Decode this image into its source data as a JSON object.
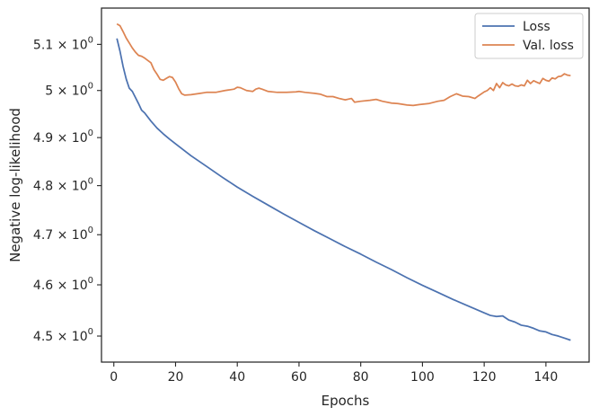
{
  "chart_data": {
    "type": "line",
    "title": "",
    "xlabel": "Epochs",
    "ylabel": "Negative log-likelihood",
    "yscale": "log",
    "xlim": [
      -4,
      154
    ],
    "ylim": [
      4.45,
      5.18
    ],
    "grid": false,
    "legend_position": "top-right",
    "x_ticks": [
      0,
      20,
      40,
      60,
      80,
      100,
      120,
      140
    ],
    "y_ticks": [
      {
        "value": 4.5,
        "mantissa": "4.5"
      },
      {
        "value": 4.6,
        "mantissa": "4.6"
      },
      {
        "value": 4.7,
        "mantissa": "4.7"
      },
      {
        "value": 4.8,
        "mantissa": "4.8"
      },
      {
        "value": 4.9,
        "mantissa": "4.9"
      },
      {
        "value": 5.0,
        "mantissa": "5"
      },
      {
        "value": 5.1,
        "mantissa": "5.1"
      }
    ],
    "y_tick_suffix": "× 10",
    "y_tick_exponent": "0",
    "series": [
      {
        "name": "Loss",
        "color": "#4c72b0",
        "points": [
          [
            1,
            5.113
          ],
          [
            2,
            5.085
          ],
          [
            3,
            5.052
          ],
          [
            4,
            5.025
          ],
          [
            5,
            5.005
          ],
          [
            6,
            4.998
          ],
          [
            7,
            4.985
          ],
          [
            8,
            4.972
          ],
          [
            9,
            4.958
          ],
          [
            10,
            4.952
          ],
          [
            12,
            4.935
          ],
          [
            14,
            4.92
          ],
          [
            16,
            4.908
          ],
          [
            18,
            4.897
          ],
          [
            20,
            4.887
          ],
          [
            25,
            4.862
          ],
          [
            30,
            4.84
          ],
          [
            35,
            4.818
          ],
          [
            40,
            4.797
          ],
          [
            45,
            4.778
          ],
          [
            50,
            4.76
          ],
          [
            55,
            4.742
          ],
          [
            60,
            4.725
          ],
          [
            65,
            4.708
          ],
          [
            70,
            4.692
          ],
          [
            75,
            4.676
          ],
          [
            80,
            4.661
          ],
          [
            85,
            4.645
          ],
          [
            90,
            4.63
          ],
          [
            95,
            4.614
          ],
          [
            100,
            4.599
          ],
          [
            105,
            4.585
          ],
          [
            110,
            4.571
          ],
          [
            115,
            4.558
          ],
          [
            120,
            4.545
          ],
          [
            122,
            4.54
          ],
          [
            124,
            4.538
          ],
          [
            126,
            4.539
          ],
          [
            128,
            4.531
          ],
          [
            130,
            4.527
          ],
          [
            132,
            4.521
          ],
          [
            134,
            4.519
          ],
          [
            136,
            4.515
          ],
          [
            138,
            4.51
          ],
          [
            140,
            4.508
          ],
          [
            142,
            4.503
          ],
          [
            144,
            4.5
          ],
          [
            146,
            4.496
          ],
          [
            148,
            4.492
          ]
        ]
      },
      {
        "name": "Val. loss",
        "color": "#dd8452",
        "points": [
          [
            1,
            5.145
          ],
          [
            2,
            5.141
          ],
          [
            3,
            5.128
          ],
          [
            4,
            5.114
          ],
          [
            5,
            5.103
          ],
          [
            6,
            5.092
          ],
          [
            7,
            5.083
          ],
          [
            8,
            5.076
          ],
          [
            9,
            5.074
          ],
          [
            10,
            5.07
          ],
          [
            12,
            5.06
          ],
          [
            13,
            5.045
          ],
          [
            14,
            5.035
          ],
          [
            15,
            5.024
          ],
          [
            16,
            5.022
          ],
          [
            17,
            5.026
          ],
          [
            18,
            5.03
          ],
          [
            19,
            5.028
          ],
          [
            20,
            5.018
          ],
          [
            21,
            5.004
          ],
          [
            22,
            4.993
          ],
          [
            23,
            4.99
          ],
          [
            25,
            4.991
          ],
          [
            28,
            4.994
          ],
          [
            30,
            4.996
          ],
          [
            33,
            4.996
          ],
          [
            36,
            5.0
          ],
          [
            39,
            5.003
          ],
          [
            40,
            5.007
          ],
          [
            41,
            5.006
          ],
          [
            43,
            5.0
          ],
          [
            45,
            4.998
          ],
          [
            46,
            5.003
          ],
          [
            47,
            5.005
          ],
          [
            48,
            5.003
          ],
          [
            50,
            4.998
          ],
          [
            53,
            4.996
          ],
          [
            56,
            4.996
          ],
          [
            59,
            4.997
          ],
          [
            60,
            4.998
          ],
          [
            62,
            4.996
          ],
          [
            65,
            4.994
          ],
          [
            67,
            4.992
          ],
          [
            69,
            4.987
          ],
          [
            71,
            4.987
          ],
          [
            73,
            4.983
          ],
          [
            75,
            4.98
          ],
          [
            77,
            4.983
          ],
          [
            78,
            4.975
          ],
          [
            80,
            4.977
          ],
          [
            83,
            4.979
          ],
          [
            85,
            4.981
          ],
          [
            87,
            4.977
          ],
          [
            90,
            4.973
          ],
          [
            92,
            4.972
          ],
          [
            95,
            4.969
          ],
          [
            97,
            4.968
          ],
          [
            99,
            4.97
          ],
          [
            102,
            4.972
          ],
          [
            105,
            4.977
          ],
          [
            107,
            4.979
          ],
          [
            109,
            4.987
          ],
          [
            111,
            4.993
          ],
          [
            113,
            4.988
          ],
          [
            115,
            4.987
          ],
          [
            117,
            4.983
          ],
          [
            118,
            4.988
          ],
          [
            120,
            4.997
          ],
          [
            121,
            5.0
          ],
          [
            122,
            5.006
          ],
          [
            123,
            5.0
          ],
          [
            124,
            5.015
          ],
          [
            125,
            5.006
          ],
          [
            126,
            5.017
          ],
          [
            127,
            5.012
          ],
          [
            128,
            5.01
          ],
          [
            129,
            5.014
          ],
          [
            130,
            5.01
          ],
          [
            131,
            5.009
          ],
          [
            132,
            5.012
          ],
          [
            133,
            5.01
          ],
          [
            134,
            5.022
          ],
          [
            135,
            5.015
          ],
          [
            136,
            5.021
          ],
          [
            137,
            5.018
          ],
          [
            138,
            5.015
          ],
          [
            139,
            5.026
          ],
          [
            140,
            5.022
          ],
          [
            141,
            5.02
          ],
          [
            142,
            5.027
          ],
          [
            143,
            5.025
          ],
          [
            144,
            5.03
          ],
          [
            145,
            5.031
          ],
          [
            146,
            5.036
          ],
          [
            147,
            5.033
          ],
          [
            148,
            5.032
          ]
        ]
      }
    ]
  }
}
